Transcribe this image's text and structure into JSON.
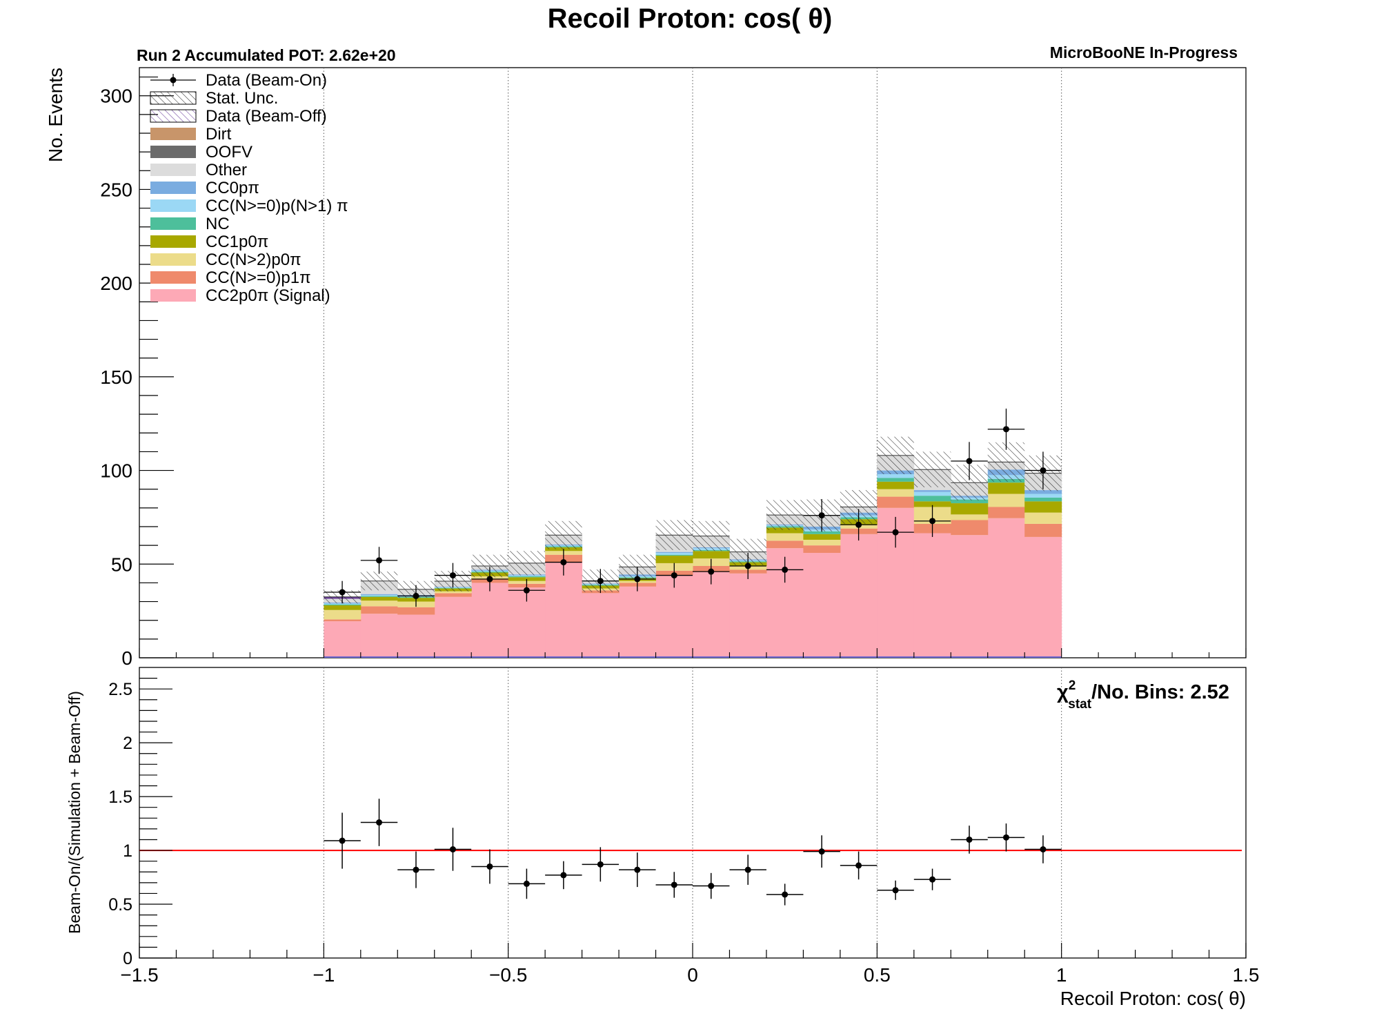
{
  "chart_data": [
    {
      "type": "bar",
      "stacked": true,
      "title": "Recoil Proton: cos( θ)",
      "subtitle_left": "Run 2 Accumulated POT: 2.62e+20",
      "subtitle_right": "MicroBooNE In-Progress",
      "xlabel": "",
      "ylabel": "No. Events",
      "xlim": [
        -1.5,
        1.5
      ],
      "ylim": [
        0,
        315
      ],
      "yticks": [
        0,
        50,
        100,
        150,
        200,
        250,
        300
      ],
      "grid": "vertical dotted lines at x = -1, -0.5, 0, 0.5, 1",
      "legend_position": "top-left",
      "bin_edges": [
        -1.0,
        -0.9,
        -0.8,
        -0.7,
        -0.6,
        -0.5,
        -0.4,
        -0.3,
        -0.2,
        -0.1,
        0.0,
        0.1,
        0.2,
        0.3,
        0.4,
        0.5,
        0.6,
        0.7,
        0.8,
        0.9,
        1.0
      ],
      "legend": [
        {
          "label": "Data (Beam-On)",
          "style": "marker",
          "color": "#000000"
        },
        {
          "label": "Stat. Unc.",
          "style": "hatch",
          "color": "#333333"
        },
        {
          "label": "Data (Beam-Off)",
          "style": "hatch-purple",
          "color": "#6a3d9a"
        },
        {
          "label": "Dirt",
          "style": "fill",
          "color": "#c8956a"
        },
        {
          "label": "OOFV",
          "style": "fill",
          "color": "#6b6b6b"
        },
        {
          "label": "Other",
          "style": "fill",
          "color": "#dcdcdc"
        },
        {
          "label": "CC0pπ",
          "style": "fill",
          "color": "#7aace0"
        },
        {
          "label": "CC(N>=0)p(N>1) π",
          "style": "fill",
          "color": "#9bd8f5"
        },
        {
          "label": "NC",
          "style": "fill",
          "color": "#4dbf9b"
        },
        {
          "label": "CC1p0π",
          "style": "fill",
          "color": "#a8a800"
        },
        {
          "label": "CC(N>2)p0π",
          "style": "fill",
          "color": "#ecdc8a"
        },
        {
          "label": "CC(N>=0)p1π",
          "style": "fill",
          "color": "#ef8a6c"
        },
        {
          "label": "CC2p0π (Signal)",
          "style": "fill",
          "color": "#fda9b6"
        }
      ],
      "series": [
        {
          "name": "CC2p0π (Signal)",
          "color": "#fda9b6",
          "values": [
            19.5,
            23.5,
            23,
            32.5,
            40,
            37.5,
            51,
            34.5,
            38,
            44,
            46,
            45,
            58.5,
            56,
            66,
            80,
            66.5,
            65.5,
            74.5,
            64.5
          ]
        },
        {
          "name": "CC(N>=0)p1π",
          "color": "#ef8a6c",
          "values": [
            1,
            4,
            4,
            2,
            2,
            2,
            4,
            1.5,
            2,
            2.5,
            3,
            2,
            4,
            4,
            3,
            6,
            5,
            8,
            6,
            7
          ]
        },
        {
          "name": "CC(N>2)p0π",
          "color": "#ecdc8a",
          "values": [
            5,
            3,
            3,
            1,
            1.5,
            1.5,
            2,
            1,
            1,
            4,
            4,
            2,
            4,
            3,
            2,
            4,
            9,
            3,
            7,
            6
          ]
        },
        {
          "name": "CC1p0π",
          "color": "#a8a800",
          "values": [
            2.5,
            2,
            2,
            1.5,
            2,
            2,
            2,
            1.5,
            1.5,
            4,
            4,
            2,
            3,
            3,
            3,
            4,
            3,
            6,
            6,
            6
          ]
        },
        {
          "name": "NC",
          "color": "#4dbf9b",
          "values": [
            0.5,
            0.5,
            0.5,
            0.3,
            0.5,
            0.5,
            0.5,
            0.5,
            0.5,
            0.5,
            0.5,
            0.5,
            0.7,
            1.5,
            1,
            2,
            3,
            2,
            2,
            2
          ]
        },
        {
          "name": "CC(N>=0)p(N>1) π",
          "color": "#9bd8f5",
          "values": [
            0.5,
            0.5,
            0.5,
            0.3,
            0.5,
            0.5,
            0.5,
            0.3,
            0.5,
            1,
            1,
            0.5,
            0.5,
            1,
            1,
            2,
            2,
            1,
            2,
            2
          ]
        },
        {
          "name": "CC0pπ",
          "color": "#7aace0",
          "values": [
            0.5,
            0.5,
            0.5,
            0.3,
            0.5,
            0.5,
            0.5,
            0.3,
            1,
            0.5,
            0.5,
            0.5,
            0.5,
            1.5,
            1.5,
            2,
            1,
            1,
            3,
            2
          ]
        },
        {
          "name": "Other",
          "color": "#dcdcdc",
          "values": [
            2,
            7,
            3,
            3,
            2,
            6,
            5,
            1.5,
            4,
            9,
            6,
            4,
            5,
            6,
            3,
            8,
            11,
            7,
            4,
            9
          ]
        },
        {
          "name": "OOFV",
          "color": "#6b6b6b",
          "values": [
            0,
            0,
            0,
            0,
            0,
            0,
            0,
            0,
            0,
            0,
            0,
            0,
            0,
            0,
            0,
            0,
            0,
            0,
            0,
            0
          ]
        },
        {
          "name": "Dirt",
          "color": "#c8956a",
          "values": [
            0,
            0,
            0,
            0,
            0,
            0,
            0,
            0,
            0,
            0,
            0,
            0,
            0,
            0,
            0,
            0,
            0,
            0,
            0,
            0
          ]
        },
        {
          "name": "Data (Beam-Off)",
          "color": "#6a3d9a",
          "values": [
            1,
            0,
            0,
            0,
            0,
            0,
            0,
            0,
            0,
            0,
            0,
            0,
            0,
            0,
            0,
            0,
            0,
            0,
            0,
            0
          ]
        }
      ],
      "stat_unc_half_width": [
        3.5,
        5,
        4.5,
        5.5,
        6,
        6.5,
        7.5,
        6,
        6.5,
        8,
        8,
        7,
        8,
        8.5,
        9,
        10,
        9.5,
        9.5,
        10.5,
        9.5
      ],
      "data_beam_on": {
        "name": "Data (Beam-On)",
        "values": [
          35,
          52,
          33,
          44,
          42,
          36,
          51,
          41,
          42,
          44,
          46,
          49,
          47,
          76,
          71,
          67,
          73,
          105,
          122,
          100
        ],
        "errors": [
          6,
          7.2,
          5.8,
          6.6,
          6.5,
          6,
          7.1,
          6.4,
          6.5,
          6.6,
          6.8,
          7,
          6.9,
          8.7,
          8.4,
          8.2,
          8.5,
          10.2,
          11,
          10
        ]
      }
    },
    {
      "type": "scatter",
      "title": "",
      "xlabel": "Recoil Proton: cos( θ)",
      "ylabel": "Beam-On/(Simulation + Beam-Off)",
      "xlim": [
        -1.5,
        1.5
      ],
      "ylim": [
        0,
        2.7
      ],
      "xticks": [
        -1.5,
        -1,
        -0.5,
        0,
        0.5,
        1,
        1.5
      ],
      "xtick_labels": [
        "−1.5",
        "−1",
        "−0.5",
        "0",
        "0.5",
        "1",
        "1.5"
      ],
      "yticks": [
        0,
        0.5,
        1,
        1.5,
        2,
        2.5
      ],
      "ytick_labels": [
        "0",
        "0.5",
        "1",
        "1.5",
        "2",
        "2.5"
      ],
      "reference_line": {
        "y": 1,
        "color": "#ff0000"
      },
      "annotation": {
        "symbol": "χ",
        "superscript": "2",
        "subscript": "stat",
        "text": "/No. Bins: 2.52"
      },
      "x": [
        -0.95,
        -0.85,
        -0.75,
        -0.65,
        -0.55,
        -0.45,
        -0.35,
        -0.25,
        -0.15,
        -0.05,
        0.05,
        0.15,
        0.25,
        0.35,
        0.45,
        0.55,
        0.65,
        0.75,
        0.85,
        0.95
      ],
      "values": [
        1.09,
        1.26,
        0.82,
        1.01,
        0.85,
        0.69,
        0.77,
        0.87,
        0.82,
        0.68,
        0.67,
        0.82,
        0.59,
        0.99,
        0.86,
        0.63,
        0.73,
        1.1,
        1.12,
        1.01
      ],
      "errors": [
        0.26,
        0.22,
        0.17,
        0.2,
        0.16,
        0.14,
        0.13,
        0.16,
        0.16,
        0.12,
        0.12,
        0.14,
        0.1,
        0.15,
        0.13,
        0.09,
        0.1,
        0.13,
        0.13,
        0.13
      ]
    }
  ]
}
